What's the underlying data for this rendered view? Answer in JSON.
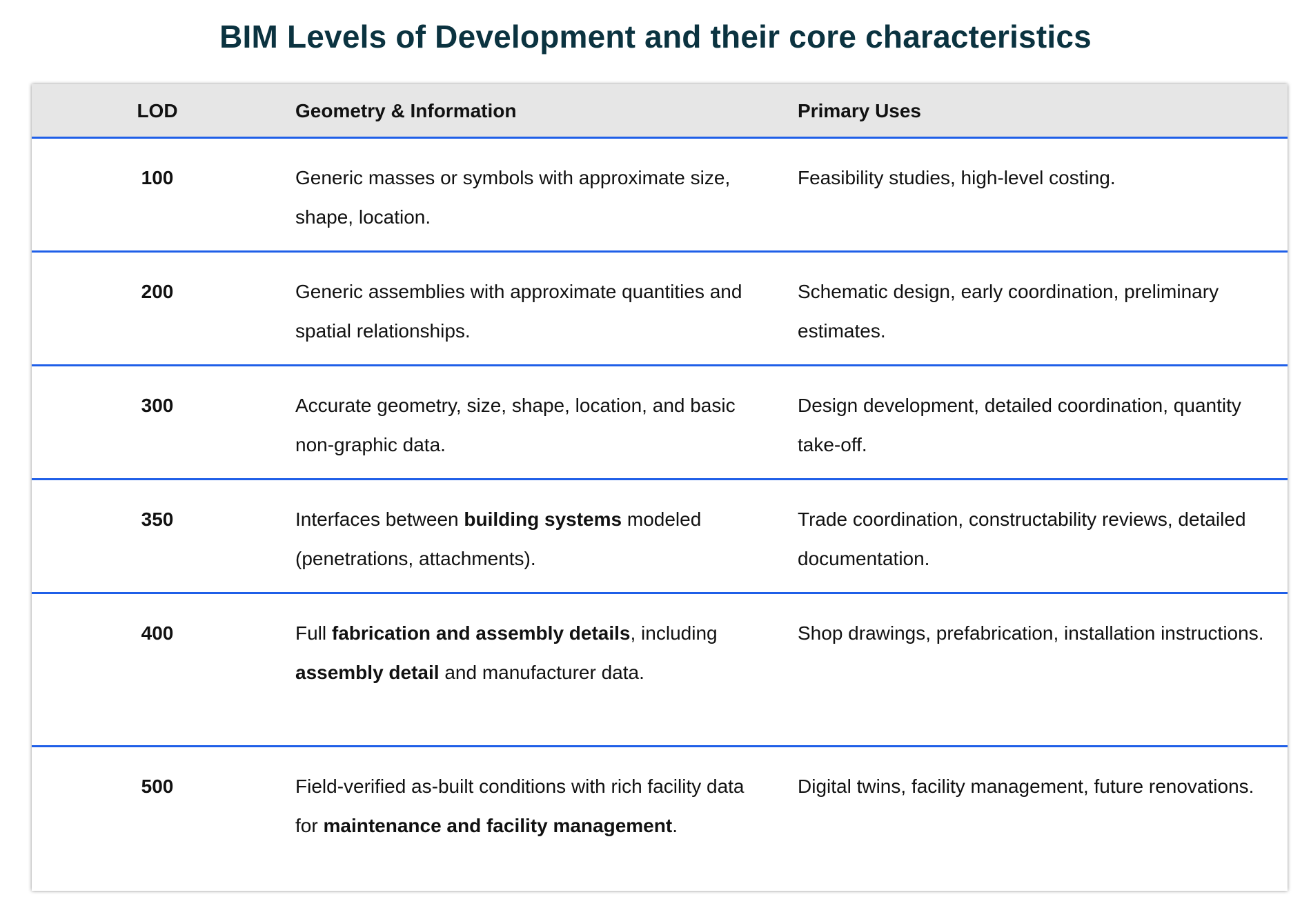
{
  "title": "BIM Levels of Development and their core characteristics",
  "colors": {
    "title": "#0b3340",
    "row_divider": "#1f5fe8",
    "header_bg": "#e6e6e6"
  },
  "table": {
    "headers": [
      "LOD",
      "Geometry & Information",
      "Primary Uses"
    ],
    "rows": [
      {
        "lod": "100",
        "geometry": [
          {
            "t": "Generic masses or symbols with approximate size, shape, location."
          }
        ],
        "uses": "Feasibility studies, high-level costing."
      },
      {
        "lod": "200",
        "geometry": [
          {
            "t": "Generic assemblies with approximate quantities and spatial relationships."
          }
        ],
        "uses": "Schematic design, early coordination, preliminary estimates."
      },
      {
        "lod": "300",
        "geometry": [
          {
            "t": "Accurate geometry, size, shape, location, and basic non-graphic data."
          }
        ],
        "uses": "Design development, detailed coordination, quantity take-off."
      },
      {
        "lod": "350",
        "geometry": [
          {
            "t": "Interfaces between "
          },
          {
            "t": "building systems",
            "b": true
          },
          {
            "t": " modeled (penetrations, attachments)."
          }
        ],
        "uses": "Trade coordination, constructability reviews, detailed documentation."
      },
      {
        "lod": "400",
        "geometry": [
          {
            "t": "Full "
          },
          {
            "t": "fabrication and assembly details",
            "b": true
          },
          {
            "t": ", including "
          },
          {
            "t": "assembly detail",
            "b": true
          },
          {
            "t": " and manufacturer data."
          }
        ],
        "uses": "Shop drawings, prefabrication, installation instructions."
      },
      {
        "lod": "500",
        "geometry": [
          {
            "t": "Field-verified as-built conditions with rich facility data for "
          },
          {
            "t": "maintenance and facility management",
            "b": true
          },
          {
            "t": "."
          }
        ],
        "uses": "Digital twins, facility management, future renovations."
      }
    ]
  }
}
